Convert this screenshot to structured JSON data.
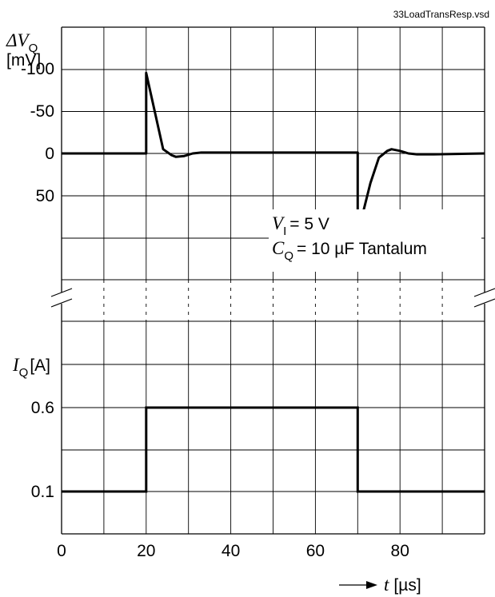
{
  "file_name": "33LoadTransResp.vsd",
  "chart_data": {
    "type": "line",
    "x_axis": {
      "label_symbol": "t",
      "label_unit": "[µs]",
      "xlim": [
        0,
        100
      ],
      "ticks": [
        0,
        20,
        40,
        60,
        80
      ],
      "tick_labels": [
        "0",
        "20",
        "40",
        "60",
        "80"
      ]
    },
    "top_panel": {
      "y_label_symbol": "ΔV",
      "y_label_sub": "Q",
      "y_label_unit": "[mV]",
      "ylim": [
        -150,
        150
      ],
      "ticks": [
        50,
        0,
        -50,
        -100
      ],
      "tick_labels": [
        "50",
        "0",
        "-50",
        "-100"
      ],
      "series": [
        {
          "points": [
            [
              0,
              0
            ],
            [
              20,
              0
            ],
            [
              20,
              -95
            ],
            [
              24,
              -5
            ],
            [
              26,
              2
            ],
            [
              27,
              4
            ],
            [
              29,
              3
            ],
            [
              31,
              0
            ],
            [
              33,
              -1
            ],
            [
              40,
              -1
            ],
            [
              50,
              -1
            ],
            [
              60,
              -1
            ],
            [
              70,
              -1
            ],
            [
              70,
              95
            ],
            [
              73,
              35
            ],
            [
              75,
              5
            ],
            [
              77,
              -3
            ],
            [
              78,
              -5
            ],
            [
              80,
              -3
            ],
            [
              82,
              0
            ],
            [
              84,
              1
            ],
            [
              88,
              1
            ],
            [
              100,
              0
            ]
          ]
        }
      ]
    },
    "annotation": {
      "line1_symbol": "V",
      "line1_sub": "I",
      "line1_text": "= 5 V",
      "line2_symbol": "C",
      "line2_sub": "Q",
      "line2_text": "= 10 µF Tantalum"
    },
    "bottom_panel": {
      "y_label_symbol": "I",
      "y_label_sub": "Q",
      "y_label_unit": "[A]",
      "ylim": [
        -0.1,
        1.1
      ],
      "ticks": [
        0.6,
        0.1
      ],
      "tick_labels": [
        "0.6",
        "0.1"
      ],
      "series": [
        {
          "points": [
            [
              0,
              0.1
            ],
            [
              20,
              0.1
            ],
            [
              20,
              0.6
            ],
            [
              70,
              0.6
            ],
            [
              70,
              0.1
            ],
            [
              100,
              0.1
            ]
          ]
        }
      ]
    },
    "grid": true,
    "axis_break": true
  }
}
